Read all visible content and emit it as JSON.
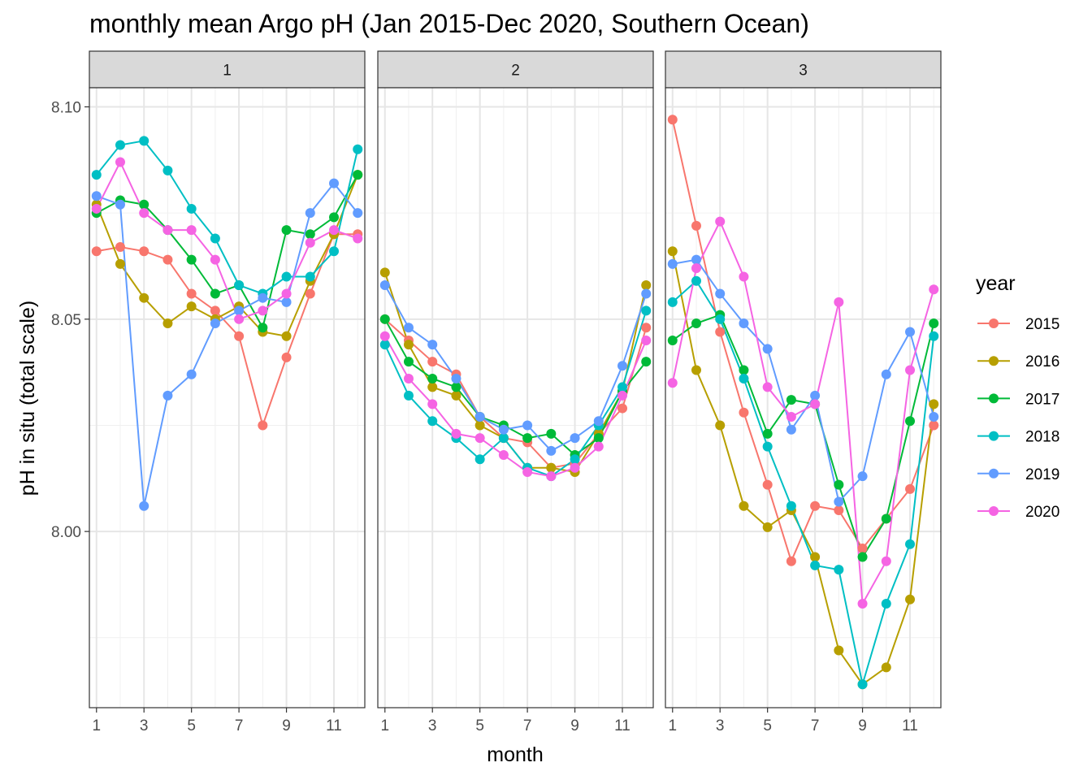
{
  "chart_data": {
    "type": "line",
    "title": "monthly mean Argo pH (Jan 2015-Dec 2020, Southern Ocean)",
    "xlabel": "month",
    "ylabel": "pH in situ (total scale)",
    "xlim": [
      0.7,
      12.3
    ],
    "ylim": [
      7.9585,
      8.1045
    ],
    "x_ticks": [
      1,
      3,
      5,
      7,
      9,
      11
    ],
    "x_tick_labels": [
      "1",
      "3",
      "5",
      "7",
      "9",
      "11"
    ],
    "y_ticks": [
      8.0,
      8.05,
      8.1
    ],
    "y_tick_labels": [
      "8.00",
      "8.05",
      "8.10"
    ],
    "y_minor_ticks": [
      7.975,
      8.025,
      8.075
    ],
    "grid": true,
    "legend": {
      "title": "year",
      "position": "right",
      "entries": [
        "2015",
        "2016",
        "2017",
        "2018",
        "2019",
        "2020"
      ]
    },
    "colors": {
      "2015": "#F8766D",
      "2016": "#B79F00",
      "2017": "#00BA38",
      "2018": "#00BFC4",
      "2019": "#619CFF",
      "2020": "#F564E3"
    },
    "x": [
      1,
      2,
      3,
      4,
      5,
      6,
      7,
      8,
      9,
      10,
      11,
      12
    ],
    "panels": [
      {
        "label": "1",
        "series": [
          {
            "name": "2015",
            "values": [
              8.066,
              8.067,
              8.066,
              8.064,
              8.056,
              8.052,
              8.046,
              8.025,
              8.041,
              8.056,
              8.07,
              8.07
            ]
          },
          {
            "name": "2016",
            "values": [
              8.077,
              8.063,
              8.055,
              8.049,
              8.053,
              8.05,
              8.053,
              8.047,
              8.046,
              8.059,
              8.07,
              8.084
            ]
          },
          {
            "name": "2017",
            "values": [
              8.075,
              8.078,
              8.077,
              8.071,
              8.064,
              8.056,
              8.058,
              8.048,
              8.071,
              8.07,
              8.074,
              8.084
            ]
          },
          {
            "name": "2018",
            "values": [
              8.084,
              8.091,
              8.092,
              8.085,
              8.076,
              8.069,
              8.058,
              8.056,
              8.06,
              8.06,
              8.066,
              8.09
            ]
          },
          {
            "name": "2019",
            "values": [
              8.079,
              8.077,
              8.006,
              8.032,
              8.037,
              8.049,
              8.052,
              8.055,
              8.054,
              8.075,
              8.082,
              8.075
            ]
          },
          {
            "name": "2020",
            "values": [
              8.076,
              8.087,
              8.075,
              8.071,
              8.071,
              8.064,
              8.05,
              8.052,
              8.056,
              8.068,
              8.071,
              8.069
            ]
          }
        ]
      },
      {
        "label": "2",
        "series": [
          {
            "name": "2015",
            "values": [
              8.05,
              8.045,
              8.04,
              8.037,
              8.027,
              8.022,
              8.021,
              8.015,
              8.016,
              8.023,
              8.029,
              8.048
            ]
          },
          {
            "name": "2016",
            "values": [
              8.061,
              8.044,
              8.034,
              8.032,
              8.025,
              8.022,
              8.015,
              8.015,
              8.014,
              8.023,
              8.033,
              8.058
            ]
          },
          {
            "name": "2017",
            "values": [
              8.05,
              8.04,
              8.036,
              8.034,
              8.027,
              8.025,
              8.022,
              8.023,
              8.018,
              8.022,
              8.033,
              8.04
            ]
          },
          {
            "name": "2018",
            "values": [
              8.044,
              8.032,
              8.026,
              8.022,
              8.017,
              8.022,
              8.015,
              8.013,
              8.017,
              8.025,
              8.034,
              8.052
            ]
          },
          {
            "name": "2019",
            "values": [
              8.058,
              8.048,
              8.044,
              8.036,
              8.027,
              8.024,
              8.025,
              8.019,
              8.022,
              8.026,
              8.039,
              8.056
            ]
          },
          {
            "name": "2020",
            "values": [
              8.046,
              8.036,
              8.03,
              8.023,
              8.022,
              8.018,
              8.014,
              8.013,
              8.015,
              8.02,
              8.032,
              8.045
            ]
          }
        ]
      },
      {
        "label": "3",
        "series": [
          {
            "name": "2015",
            "values": [
              8.097,
              8.072,
              8.047,
              8.028,
              8.011,
              7.993,
              8.006,
              8.005,
              7.996,
              8.003,
              8.01,
              8.025
            ]
          },
          {
            "name": "2016",
            "values": [
              8.066,
              8.038,
              8.025,
              8.006,
              8.001,
              8.005,
              7.994,
              7.972,
              7.964,
              7.968,
              7.984,
              8.03
            ]
          },
          {
            "name": "2017",
            "values": [
              8.045,
              8.049,
              8.051,
              8.038,
              8.023,
              8.031,
              8.03,
              8.011,
              7.994,
              8.003,
              8.026,
              8.049
            ]
          },
          {
            "name": "2018",
            "values": [
              8.054,
              8.059,
              8.05,
              8.036,
              8.02,
              8.006,
              7.992,
              7.991,
              7.964,
              7.983,
              7.997,
              8.046
            ]
          },
          {
            "name": "2019",
            "values": [
              8.063,
              8.064,
              8.056,
              8.049,
              8.043,
              8.024,
              8.032,
              8.007,
              8.013,
              8.037,
              8.047,
              8.027
            ]
          },
          {
            "name": "2020",
            "values": [
              8.035,
              8.062,
              8.073,
              8.06,
              8.034,
              8.027,
              8.03,
              8.054,
              7.983,
              7.993,
              8.038,
              8.057
            ]
          }
        ]
      }
    ]
  }
}
